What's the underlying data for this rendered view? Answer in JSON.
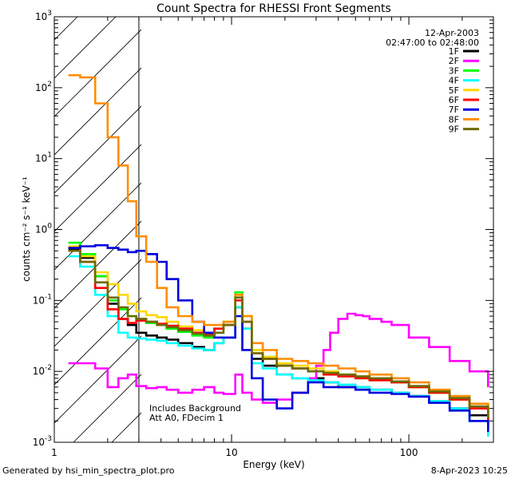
{
  "chart_data": {
    "type": "line",
    "title": "Count Spectra for RHESSI Front Segments",
    "xlabel": "Energy (keV)",
    "ylabel": "counts cm⁻² s⁻¹ keV⁻¹",
    "xscale": "log",
    "yscale": "log",
    "xlim": [
      1,
      300
    ],
    "ylim": [
      0.001,
      1000
    ],
    "x_ticks": [
      {
        "value": 1,
        "label": "1"
      },
      {
        "value": 10,
        "label": "10"
      },
      {
        "value": 100,
        "label": "100"
      }
    ],
    "y_ticks": [
      {
        "value": 0.001,
        "base": "10",
        "exp": "-3"
      },
      {
        "value": 0.01,
        "base": "10",
        "exp": "-2"
      },
      {
        "value": 0.1,
        "base": "10",
        "exp": "-1"
      },
      {
        "value": 1,
        "base": "10",
        "exp": "0"
      },
      {
        "value": 10,
        "base": "10",
        "exp": "1"
      },
      {
        "value": 100,
        "base": "10",
        "exp": "2"
      },
      {
        "value": 1000,
        "base": "10",
        "exp": "3"
      }
    ],
    "shaded_region": [
      1,
      3
    ],
    "info_lines": [
      "12-Apr-2003",
      "02:47:00 to 02:48:00"
    ],
    "annotation_lines": [
      "Includes Background",
      "Att A0, FDecim 1"
    ],
    "series": [
      {
        "name": "1F",
        "color": "#000000",
        "x": [
          1.2,
          1.4,
          1.7,
          2.0,
          2.3,
          2.6,
          2.9,
          3.3,
          3.8,
          4.3,
          5.0,
          6.0,
          7.0,
          8.0,
          9.0,
          10.5,
          11.5,
          13,
          15,
          18,
          22,
          27,
          33,
          40,
          50,
          60,
          80,
          100,
          130,
          170,
          220,
          280
        ],
        "values": [
          0.52,
          0.4,
          0.22,
          0.09,
          0.055,
          0.045,
          0.035,
          0.032,
          0.03,
          0.028,
          0.025,
          0.022,
          0.02,
          0.025,
          0.03,
          0.08,
          0.04,
          0.015,
          0.012,
          0.009,
          0.008,
          0.008,
          0.007,
          0.006,
          0.006,
          0.0055,
          0.005,
          0.0045,
          0.0038,
          0.003,
          0.0024,
          0.0016
        ]
      },
      {
        "name": "2F",
        "color": "#ff00ff",
        "x": [
          1.2,
          1.4,
          1.7,
          2.0,
          2.3,
          2.6,
          2.9,
          3.3,
          3.8,
          4.3,
          5.0,
          6.0,
          7.0,
          8.0,
          9.0,
          10.5,
          11.5,
          13,
          15,
          18,
          22,
          27,
          30,
          33,
          36,
          40,
          45,
          50,
          55,
          60,
          70,
          80,
          100,
          130,
          170,
          220,
          280
        ],
        "values": [
          0.013,
          0.013,
          0.011,
          0.006,
          0.008,
          0.009,
          0.0062,
          0.0058,
          0.006,
          0.0055,
          0.005,
          0.0055,
          0.006,
          0.005,
          0.0048,
          0.009,
          0.005,
          0.004,
          0.0036,
          0.004,
          0.005,
          0.008,
          0.012,
          0.02,
          0.035,
          0.055,
          0.065,
          0.062,
          0.06,
          0.055,
          0.05,
          0.045,
          0.03,
          0.022,
          0.014,
          0.01,
          0.006
        ]
      },
      {
        "name": "3F",
        "color": "#00ff00",
        "x": [
          1.2,
          1.4,
          1.7,
          2.0,
          2.3,
          2.6,
          2.9,
          3.3,
          3.8,
          4.3,
          5.0,
          6.0,
          7.0,
          8.0,
          9.0,
          10.5,
          11.5,
          13,
          15,
          18,
          22,
          27,
          33,
          40,
          50,
          60,
          80,
          100,
          130,
          170,
          220,
          280
        ],
        "values": [
          0.65,
          0.45,
          0.22,
          0.1,
          0.075,
          0.06,
          0.055,
          0.048,
          0.045,
          0.04,
          0.036,
          0.032,
          0.03,
          0.04,
          0.05,
          0.13,
          0.06,
          0.02,
          0.016,
          0.012,
          0.011,
          0.01,
          0.01,
          0.009,
          0.008,
          0.0075,
          0.007,
          0.006,
          0.005,
          0.004,
          0.003,
          0.002
        ]
      },
      {
        "name": "4F",
        "color": "#00ffff",
        "x": [
          1.2,
          1.4,
          1.7,
          2.0,
          2.3,
          2.6,
          2.9,
          3.3,
          3.8,
          4.3,
          5.0,
          6.0,
          7.0,
          8.0,
          9.0,
          10.5,
          11.5,
          13,
          15,
          18,
          22,
          27,
          33,
          40,
          50,
          60,
          80,
          100,
          130,
          170,
          220,
          280
        ],
        "values": [
          0.42,
          0.3,
          0.12,
          0.06,
          0.035,
          0.03,
          0.029,
          0.028,
          0.027,
          0.025,
          0.023,
          0.021,
          0.02,
          0.025,
          0.03,
          0.08,
          0.04,
          0.013,
          0.011,
          0.009,
          0.008,
          0.0075,
          0.007,
          0.0065,
          0.006,
          0.0055,
          0.005,
          0.0045,
          0.0038,
          0.003,
          0.002,
          0.0012
        ]
      },
      {
        "name": "5F",
        "color": "#ffd700",
        "x": [
          1.2,
          1.4,
          1.7,
          2.0,
          2.3,
          2.6,
          2.9,
          3.3,
          3.8,
          4.3,
          5.0,
          6.0,
          7.0,
          8.0,
          9.0,
          10.5,
          11.5,
          13,
          15,
          18,
          22,
          27,
          33,
          40,
          50,
          60,
          80,
          100,
          130,
          170,
          220,
          280
        ],
        "values": [
          0.58,
          0.42,
          0.25,
          0.17,
          0.12,
          0.09,
          0.07,
          0.062,
          0.058,
          0.05,
          0.043,
          0.038,
          0.035,
          0.04,
          0.05,
          0.12,
          0.06,
          0.02,
          0.016,
          0.013,
          0.012,
          0.011,
          0.01,
          0.009,
          0.0085,
          0.008,
          0.007,
          0.006,
          0.005,
          0.004,
          0.003,
          0.002
        ]
      },
      {
        "name": "6F",
        "color": "#ff0000",
        "x": [
          1.2,
          1.4,
          1.7,
          2.0,
          2.3,
          2.6,
          2.9,
          3.3,
          3.8,
          4.3,
          5.0,
          6.0,
          7.0,
          8.0,
          9.0,
          10.5,
          11.5,
          13,
          15,
          18,
          22,
          27,
          33,
          40,
          50,
          60,
          80,
          100,
          130,
          170,
          220,
          280
        ],
        "values": [
          0.55,
          0.35,
          0.15,
          0.075,
          0.055,
          0.048,
          0.052,
          0.05,
          0.047,
          0.044,
          0.04,
          0.035,
          0.033,
          0.04,
          0.045,
          0.1,
          0.05,
          0.018,
          0.015,
          0.012,
          0.011,
          0.01,
          0.009,
          0.0085,
          0.008,
          0.0075,
          0.007,
          0.006,
          0.005,
          0.004,
          0.003,
          0.002
        ]
      },
      {
        "name": "7F",
        "color": "#0000dd",
        "x": [
          1.2,
          1.4,
          1.7,
          2.0,
          2.3,
          2.6,
          2.9,
          3.3,
          3.8,
          4.3,
          5.0,
          6.0,
          7.0,
          8.0,
          9.0,
          10.5,
          11.5,
          13,
          15,
          18,
          22,
          27,
          33,
          40,
          50,
          60,
          80,
          100,
          130,
          170,
          220,
          280
        ],
        "values": [
          0.55,
          0.58,
          0.6,
          0.55,
          0.52,
          0.48,
          0.5,
          0.45,
          0.35,
          0.2,
          0.1,
          0.05,
          0.035,
          0.03,
          0.03,
          0.06,
          0.02,
          0.008,
          0.004,
          0.003,
          0.005,
          0.007,
          0.006,
          0.006,
          0.0055,
          0.005,
          0.0048,
          0.0044,
          0.0036,
          0.0028,
          0.002,
          0.0014
        ]
      },
      {
        "name": "8F",
        "color": "#ff8c00",
        "x": [
          1.2,
          1.4,
          1.7,
          2.0,
          2.3,
          2.6,
          2.9,
          3.3,
          3.8,
          4.3,
          5.0,
          6.0,
          7.0,
          8.0,
          9.0,
          10.5,
          11.5,
          13,
          15,
          18,
          22,
          27,
          33,
          40,
          50,
          60,
          80,
          100,
          130,
          170,
          220,
          280
        ],
        "values": [
          150,
          140,
          60,
          20,
          8,
          2.5,
          0.8,
          0.35,
          0.15,
          0.08,
          0.06,
          0.05,
          0.045,
          0.045,
          0.05,
          0.12,
          0.06,
          0.025,
          0.02,
          0.015,
          0.014,
          0.013,
          0.012,
          0.011,
          0.01,
          0.009,
          0.008,
          0.007,
          0.0055,
          0.0045,
          0.0035,
          0.0025
        ]
      },
      {
        "name": "9F",
        "color": "#6b6b00",
        "x": [
          1.2,
          1.4,
          1.7,
          2.0,
          2.3,
          2.6,
          2.9,
          3.3,
          3.8,
          4.3,
          5.0,
          6.0,
          7.0,
          8.0,
          9.0,
          10.5,
          11.5,
          13,
          15,
          18,
          22,
          27,
          33,
          40,
          50,
          60,
          80,
          100,
          130,
          170,
          220,
          280
        ],
        "values": [
          0.5,
          0.35,
          0.18,
          0.11,
          0.08,
          0.06,
          0.055,
          0.05,
          0.045,
          0.042,
          0.038,
          0.034,
          0.032,
          0.035,
          0.045,
          0.11,
          0.05,
          0.018,
          0.015,
          0.012,
          0.011,
          0.01,
          0.0095,
          0.009,
          0.0085,
          0.008,
          0.0072,
          0.0062,
          0.0052,
          0.0042,
          0.0032,
          0.0022
        ]
      }
    ]
  },
  "footer": {
    "generated_by": "Generated by hsi_min_spectra_plot.pro",
    "date": "8-Apr-2023 10:25"
  }
}
